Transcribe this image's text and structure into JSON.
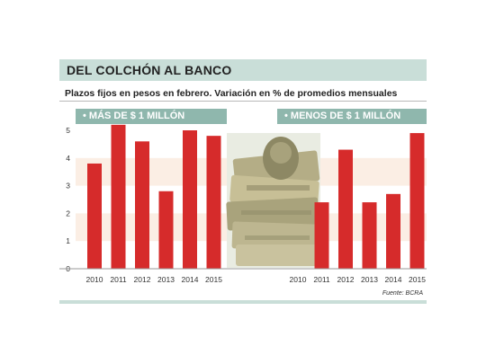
{
  "title": "DEL COLCHÓN AL BANCO",
  "subtitle": "Plazos fijos en pesos en febrero. Variación en % de promedios mensuales",
  "source": "Fuente: BCRA",
  "colors": {
    "bar": "#d62b2b",
    "title_band": "#c9ded8",
    "panel_header": "#8fb7ad",
    "stripe": "#fbeee4"
  },
  "illustration_icon": "banknote-stack-icon",
  "chart_data": [
    {
      "type": "bar",
      "title": "• MÁS DE $ 1 MILLÓN",
      "categories": [
        "2010",
        "2011",
        "2012",
        "2013",
        "2014",
        "2015"
      ],
      "values": [
        3.8,
        5.2,
        4.6,
        2.8,
        5.0,
        4.8
      ],
      "ylim": [
        0,
        5
      ],
      "yticks": [
        "0",
        "1",
        "2",
        "3",
        "4",
        "5"
      ],
      "grid": "horizontal stripes"
    },
    {
      "type": "bar",
      "title": "• MENOS DE $ 1 MILLÓN",
      "categories": [
        "2010",
        "2011",
        "2012",
        "2013",
        "2014",
        "2015"
      ],
      "values": [
        0,
        2.4,
        4.3,
        2.4,
        2.7,
        4.9
      ],
      "ylim": [
        0,
        5
      ],
      "grid": "horizontal stripes"
    }
  ]
}
